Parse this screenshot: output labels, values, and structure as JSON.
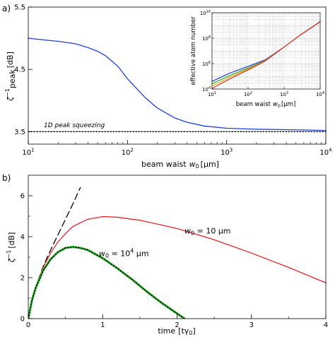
{
  "chart_data": [
    {
      "panel_label": "a)",
      "type": "line",
      "xscale": "log",
      "xlim": [
        10,
        10000
      ],
      "ylim": [
        3.3,
        5.5
      ],
      "xlabel": "beam waist",
      "xlabel_sym": "w",
      "xlabel_sub": "0",
      "xlabel_unit": "[μm]",
      "ylabel_sym": "ζ",
      "ylabel_sup": "−1",
      "ylabel_sub": "peak",
      "ylabel_unit": "[dB]",
      "xticks": [
        {
          "value": 10,
          "base": "10",
          "exp": "1"
        },
        {
          "value": 100,
          "base": "10",
          "exp": "2"
        },
        {
          "value": 1000,
          "base": "10",
          "exp": "3"
        },
        {
          "value": 10000,
          "base": "10",
          "exp": "4"
        }
      ],
      "yticks": [
        {
          "value": 3.5,
          "label": "3.5"
        },
        {
          "value": 4.5,
          "label": "4.5"
        },
        {
          "value": 5.5,
          "label": "5.5"
        }
      ],
      "grid": false,
      "series": [
        {
          "color": "#1f3fd8",
          "style": "solid",
          "x": [
            10,
            15,
            20,
            30,
            40,
            50,
            60,
            80,
            100,
            150,
            200,
            300,
            400,
            600,
            1000,
            1500,
            2000,
            3000,
            5000,
            10000
          ],
          "y": [
            5.0,
            4.97,
            4.95,
            4.91,
            4.85,
            4.79,
            4.72,
            4.55,
            4.35,
            4.05,
            3.88,
            3.72,
            3.65,
            3.59,
            3.555,
            3.545,
            3.54,
            3.535,
            3.53,
            3.52
          ]
        },
        {
          "color": "#000000",
          "style": "dotted",
          "x": [
            10,
            10000
          ],
          "y": [
            3.5,
            3.5
          ]
        }
      ],
      "annotations": [
        {
          "text": "1D peak squeezing",
          "x": 12,
          "y": 3.43
        }
      ],
      "inset": {
        "type": "line",
        "xscale": "log",
        "yscale": "log",
        "xlim": [
          10,
          10000
        ],
        "ylim": [
          10000,
          10000000000
        ],
        "xlabel": "beam waist",
        "xlabel_sym": "w",
        "xlabel_sub": "0",
        "xlabel_unit": "[μm]",
        "ylabel": "effective atom number",
        "grid": true,
        "xticks": [
          {
            "value": 10,
            "base": "10",
            "exp": "1"
          },
          {
            "value": 100,
            "base": "10",
            "exp": "2"
          },
          {
            "value": 1000,
            "base": "10",
            "exp": "3"
          },
          {
            "value": 10000,
            "base": "10",
            "exp": "4"
          }
        ],
        "yticks": [
          {
            "value": 10000,
            "base": "10",
            "exp": "4"
          },
          {
            "value": 1000000,
            "base": "10",
            "exp": "6"
          },
          {
            "value": 100000000,
            "base": "10",
            "exp": "8"
          },
          {
            "value": 10000000000,
            "base": "10",
            "exp": "10"
          }
        ],
        "series": [
          {
            "color": "#1f3fd8",
            "x": [
              10,
              30,
              100,
              300,
              1000,
              3000,
              10000
            ],
            "y": [
              40000,
              170000,
              600000,
              2000000,
              20000000,
              200000000,
              2000000000
            ]
          },
          {
            "color": "#2a9d2a",
            "x": [
              10,
              30,
              100,
              300,
              1000,
              3000,
              10000
            ],
            "y": [
              26000,
              110000,
              450000,
              1800000,
              20000000,
              200000000,
              2000000000
            ]
          },
          {
            "color": "#e2b400",
            "x": [
              10,
              30,
              100,
              300,
              1000,
              3000,
              10000
            ],
            "y": [
              17000,
              80000,
              380000,
              1700000,
              20000000,
              200000000,
              2000000000
            ]
          },
          {
            "color": "#e0262a",
            "x": [
              10,
              30,
              100,
              300,
              1000,
              3000,
              10000
            ],
            "y": [
              11000,
              60000,
              320000,
              1600000,
              20000000,
              200000000,
              2000000000
            ]
          }
        ]
      }
    },
    {
      "panel_label": "b)",
      "type": "line",
      "xlim": [
        0,
        4
      ],
      "ylim": [
        0,
        7
      ],
      "xlabel": "time",
      "xlabel_unit": "[tγ",
      "xlabel_sub": "0",
      "xlabel_close": "]",
      "ylabel_sym": "ζ",
      "ylabel_sup": "−1",
      "ylabel_unit": "[dB]",
      "xticks": [
        {
          "value": 0,
          "label": "0"
        },
        {
          "value": 1,
          "label": "1"
        },
        {
          "value": 2,
          "label": "2"
        },
        {
          "value": 3,
          "label": "3"
        },
        {
          "value": 4,
          "label": "4"
        }
      ],
      "yticks": [
        {
          "value": 0,
          "label": "0"
        },
        {
          "value": 2,
          "label": "2"
        },
        {
          "value": 4,
          "label": "4"
        },
        {
          "value": 6,
          "label": "6"
        }
      ],
      "grid": false,
      "series": [
        {
          "color": "#000000",
          "style": "dashed",
          "x": [
            0,
            0.05,
            0.1,
            0.2,
            0.3,
            0.4,
            0.5,
            0.6,
            0.7
          ],
          "y": [
            0,
            0.9,
            1.55,
            2.55,
            3.35,
            4.1,
            4.85,
            5.6,
            6.4
          ]
        },
        {
          "color": "#e0262a",
          "style": "solid",
          "x": [
            0,
            0.05,
            0.1,
            0.2,
            0.3,
            0.4,
            0.5,
            0.6,
            0.8,
            1.0,
            1.2,
            1.5,
            2.0,
            2.5,
            3.0,
            3.5,
            4.0
          ],
          "y": [
            0,
            0.9,
            1.55,
            2.5,
            3.2,
            3.75,
            4.15,
            4.5,
            4.85,
            4.98,
            4.95,
            4.8,
            4.4,
            3.85,
            3.2,
            2.5,
            1.75
          ]
        },
        {
          "color": "#2fd02f",
          "style": "solid",
          "x": [
            0,
            0.05,
            0.1,
            0.2,
            0.3,
            0.4,
            0.5,
            0.6,
            0.7,
            0.8,
            1.0,
            1.2,
            1.4,
            1.6,
            1.8,
            2.0,
            2.1
          ],
          "y": [
            0,
            0.9,
            1.5,
            2.35,
            2.9,
            3.25,
            3.45,
            3.5,
            3.45,
            3.35,
            2.95,
            2.45,
            1.9,
            1.3,
            0.75,
            0.25,
            0
          ]
        },
        {
          "color": "#000000",
          "style": "dotted",
          "x": [
            0,
            0.05,
            0.1,
            0.2,
            0.3,
            0.4,
            0.5,
            0.6,
            0.7,
            0.8,
            1.0,
            1.2,
            1.4,
            1.6,
            1.8,
            2.0,
            2.1
          ],
          "y": [
            0,
            0.9,
            1.5,
            2.35,
            2.9,
            3.25,
            3.45,
            3.5,
            3.45,
            3.35,
            2.95,
            2.45,
            1.9,
            1.3,
            0.75,
            0.25,
            0
          ]
        }
      ],
      "annotations": [
        {
          "sym": "w",
          "sub": "0",
          "eq": " = 10 μm",
          "x": 2.1,
          "y": 4.15
        },
        {
          "sym": "w",
          "sub": "0",
          "eq": " = 10",
          "sup": "4",
          "unit": " μm",
          "x": 0.95,
          "y": 3.05
        }
      ]
    }
  ]
}
